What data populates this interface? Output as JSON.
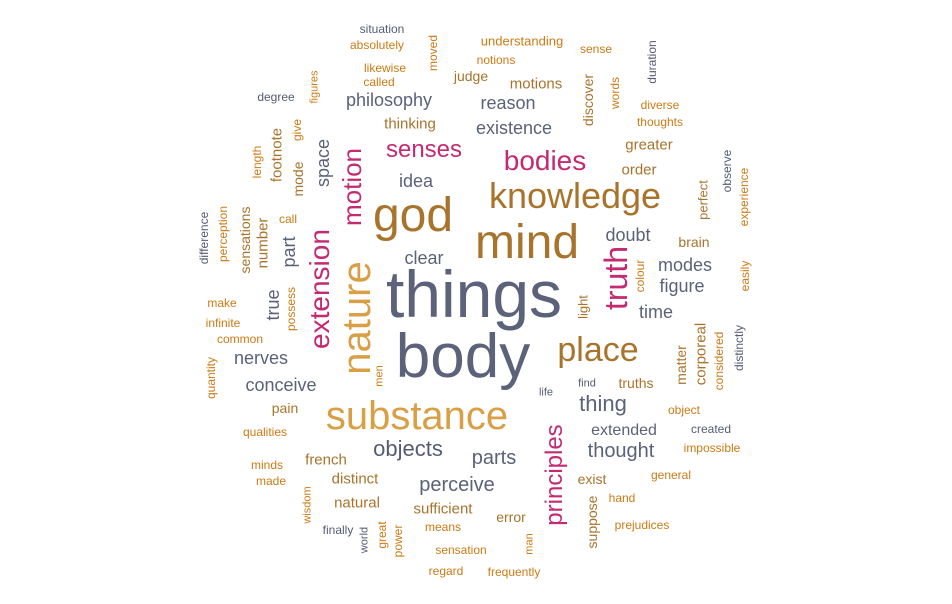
{
  "colors": {
    "slate": "#5b6279",
    "gold": "#d99f45",
    "brown": "#a8742c",
    "orange": "#cc7a14",
    "magenta": "#c42a72",
    "blue": "#555b75",
    "gray": "#7d7f8a"
  },
  "words": [
    {
      "text": "things",
      "color": "slate",
      "w": 128
    },
    {
      "text": "body",
      "color": "slate",
      "w": 128
    },
    {
      "text": "mind",
      "color": "brown",
      "w": 96
    },
    {
      "text": "god",
      "color": "brown",
      "w": 96
    },
    {
      "text": "knowledge",
      "color": "brown",
      "w": 80
    },
    {
      "text": "substance",
      "color": "gold",
      "w": 80
    },
    {
      "text": "nature",
      "color": "gold",
      "w": 80
    },
    {
      "text": "place",
      "color": "brown",
      "w": 64
    },
    {
      "text": "extension",
      "color": "magenta",
      "w": 60
    },
    {
      "text": "truth",
      "color": "magenta",
      "w": 58
    },
    {
      "text": "motion",
      "color": "magenta",
      "w": 50
    },
    {
      "text": "principles",
      "color": "magenta",
      "w": 44
    },
    {
      "text": "bodies",
      "color": "magenta",
      "w": 48
    },
    {
      "text": "senses",
      "color": "magenta",
      "w": 40
    },
    {
      "text": "objects",
      "color": "blue",
      "w": 40
    },
    {
      "text": "thing",
      "color": "slate",
      "w": 38
    },
    {
      "text": "thought",
      "color": "slate",
      "w": 36
    },
    {
      "text": "parts",
      "color": "slate",
      "w": 36
    },
    {
      "text": "perceive",
      "color": "slate",
      "w": 32
    },
    {
      "text": "clear",
      "color": "slate",
      "w": 30
    },
    {
      "text": "doubt",
      "color": "slate",
      "w": 30
    },
    {
      "text": "idea",
      "color": "slate",
      "w": 30
    },
    {
      "text": "reason",
      "color": "slate",
      "w": 30
    },
    {
      "text": "philosophy",
      "color": "slate",
      "w": 30
    },
    {
      "text": "existence",
      "color": "slate",
      "w": 28
    },
    {
      "text": "conceive",
      "color": "slate",
      "w": 28
    },
    {
      "text": "nerves",
      "color": "slate",
      "w": 28
    },
    {
      "text": "extended",
      "color": "slate",
      "w": 28
    },
    {
      "text": "modes",
      "color": "slate",
      "w": 28
    },
    {
      "text": "figure",
      "color": "slate",
      "w": 28
    },
    {
      "text": "time",
      "color": "slate",
      "w": 28
    },
    {
      "text": "space",
      "color": "slate",
      "w": 26
    },
    {
      "text": "part",
      "color": "slate",
      "w": 26
    },
    {
      "text": "true",
      "color": "slate",
      "w": 26
    },
    {
      "text": "distinct",
      "color": "brown",
      "w": 22
    },
    {
      "text": "french",
      "color": "brown",
      "w": 22
    },
    {
      "text": "natural",
      "color": "brown",
      "w": 20
    },
    {
      "text": "sufficient",
      "color": "brown",
      "w": 20
    },
    {
      "text": "error",
      "color": "brown",
      "w": 20
    },
    {
      "text": "thinking",
      "color": "brown",
      "w": 20
    },
    {
      "text": "motions",
      "color": "brown",
      "w": 20
    },
    {
      "text": "judge",
      "color": "brown",
      "w": 20
    },
    {
      "text": "greater",
      "color": "brown",
      "w": 20
    },
    {
      "text": "order",
      "color": "brown",
      "w": 20
    },
    {
      "text": "truths",
      "color": "brown",
      "w": 20
    },
    {
      "text": "exist",
      "color": "brown",
      "w": 20
    },
    {
      "text": "pain",
      "color": "brown",
      "w": 20
    },
    {
      "text": "brain",
      "color": "brown",
      "w": 20
    },
    {
      "text": "number",
      "color": "brown",
      "w": 20
    },
    {
      "text": "sensations",
      "color": "brown",
      "w": 20
    },
    {
      "text": "matter",
      "color": "brown",
      "w": 20
    },
    {
      "text": "corporeal",
      "color": "brown",
      "w": 20
    },
    {
      "text": "suppose",
      "color": "brown",
      "w": 20
    },
    {
      "text": "discover",
      "color": "brown",
      "w": 20
    },
    {
      "text": "mode",
      "color": "brown",
      "w": 20
    },
    {
      "text": "footnote",
      "color": "brown",
      "w": 20
    },
    {
      "text": "light",
      "color": "brown",
      "w": 18
    },
    {
      "text": "perfect",
      "color": "brown",
      "w": 18
    },
    {
      "text": "understanding",
      "color": "orange",
      "w": 16
    },
    {
      "text": "absolutely",
      "color": "orange",
      "w": 14
    },
    {
      "text": "likewise",
      "color": "orange",
      "w": 14
    },
    {
      "text": "called",
      "color": "orange",
      "w": 14
    },
    {
      "text": "notions",
      "color": "orange",
      "w": 14
    },
    {
      "text": "sense",
      "color": "orange",
      "w": 14
    },
    {
      "text": "diverse",
      "color": "orange",
      "w": 14
    },
    {
      "text": "thoughts",
      "color": "orange",
      "w": 14
    },
    {
      "text": "make",
      "color": "orange",
      "w": 14
    },
    {
      "text": "infinite",
      "color": "orange",
      "w": 14
    },
    {
      "text": "common",
      "color": "orange",
      "w": 14
    },
    {
      "text": "qualities",
      "color": "orange",
      "w": 14
    },
    {
      "text": "minds",
      "color": "orange",
      "w": 14
    },
    {
      "text": "made",
      "color": "orange",
      "w": 14
    },
    {
      "text": "means",
      "color": "orange",
      "w": 14
    },
    {
      "text": "sensation",
      "color": "orange",
      "w": 14
    },
    {
      "text": "regard",
      "color": "orange",
      "w": 14
    },
    {
      "text": "frequently",
      "color": "orange",
      "w": 14
    },
    {
      "text": "prejudices",
      "color": "orange",
      "w": 14
    },
    {
      "text": "hand",
      "color": "orange",
      "w": 14
    },
    {
      "text": "general",
      "color": "orange",
      "w": 14
    },
    {
      "text": "impossible",
      "color": "orange",
      "w": 14
    },
    {
      "text": "object",
      "color": "orange",
      "w": 14
    },
    {
      "text": "words",
      "color": "orange",
      "w": 14
    },
    {
      "text": "moved",
      "color": "orange",
      "w": 14
    },
    {
      "text": "figures",
      "color": "orange",
      "w": 12
    },
    {
      "text": "give",
      "color": "orange",
      "w": 14
    },
    {
      "text": "length",
      "color": "orange",
      "w": 14
    },
    {
      "text": "perception",
      "color": "orange",
      "w": 14
    },
    {
      "text": "call",
      "color": "orange",
      "w": 14
    },
    {
      "text": "possess",
      "color": "orange",
      "w": 14
    },
    {
      "text": "quantity",
      "color": "orange",
      "w": 14
    },
    {
      "text": "men",
      "color": "orange",
      "w": 12
    },
    {
      "text": "colour",
      "color": "orange",
      "w": 14
    },
    {
      "text": "considered",
      "color": "orange",
      "w": 14
    },
    {
      "text": "experience",
      "color": "orange",
      "w": 14
    },
    {
      "text": "easily",
      "color": "orange",
      "w": 14
    },
    {
      "text": "wisdom",
      "color": "orange",
      "w": 12
    },
    {
      "text": "great",
      "color": "orange",
      "w": 14
    },
    {
      "text": "power",
      "color": "orange",
      "w": 14
    },
    {
      "text": "man",
      "color": "orange",
      "w": 12
    },
    {
      "text": "situation",
      "color": "blue",
      "w": 14
    },
    {
      "text": "degree",
      "color": "blue",
      "w": 14
    },
    {
      "text": "duration",
      "color": "blue",
      "w": 14
    },
    {
      "text": "observe",
      "color": "blue",
      "w": 14
    },
    {
      "text": "difference",
      "color": "blue",
      "w": 14
    },
    {
      "text": "distinctly",
      "color": "blue",
      "w": 14
    },
    {
      "text": "created",
      "color": "blue",
      "w": 14
    },
    {
      "text": "find",
      "color": "blue",
      "w": 12
    },
    {
      "text": "life",
      "color": "blue",
      "w": 12
    },
    {
      "text": "finally",
      "color": "blue",
      "w": 14
    },
    {
      "text": "world",
      "color": "blue",
      "w": 12
    }
  ]
}
